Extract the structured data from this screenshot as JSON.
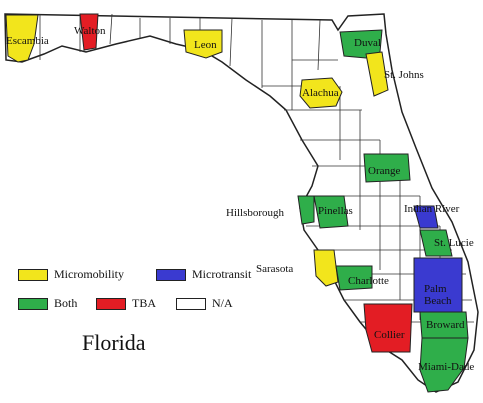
{
  "state_title": "Florida",
  "colors": {
    "micromobility": "#f2e51c",
    "microtransit": "#3a3ad0",
    "both": "#2fae4a",
    "tba": "#e31d24",
    "na": "#ffffff"
  },
  "legend": [
    {
      "key": "micromobility",
      "label": "Micromobility"
    },
    {
      "key": "microtransit",
      "label": "Microtransit"
    },
    {
      "key": "both",
      "label": "Both"
    },
    {
      "key": "tba",
      "label": "TBA"
    },
    {
      "key": "na",
      "label": "N/A"
    }
  ],
  "counties": [
    {
      "id": "escambia",
      "label": "Escambia",
      "category": "micromobility"
    },
    {
      "id": "walton",
      "label": "Walton",
      "category": "tba"
    },
    {
      "id": "leon",
      "label": "Leon",
      "category": "micromobility"
    },
    {
      "id": "duval",
      "label": "Duval",
      "category": "both"
    },
    {
      "id": "st-johns",
      "label": "St. Johns",
      "category": "micromobility"
    },
    {
      "id": "alachua",
      "label": "Alachua",
      "category": "micromobility"
    },
    {
      "id": "orange",
      "label": "Orange",
      "category": "both"
    },
    {
      "id": "hillsborough",
      "label": "Hillsborough",
      "category": "both"
    },
    {
      "id": "pinellas",
      "label": "Pinellas",
      "category": "both"
    },
    {
      "id": "indian-river",
      "label": "Indian River",
      "category": "microtransit"
    },
    {
      "id": "st-lucie",
      "label": "St. Lucie",
      "category": "both"
    },
    {
      "id": "sarasota",
      "label": "Sarasota",
      "category": "micromobility"
    },
    {
      "id": "charlotte",
      "label": "Charlotte",
      "category": "both"
    },
    {
      "id": "palm-beach",
      "label": "Palm Beach",
      "category": "microtransit"
    },
    {
      "id": "broward",
      "label": "Broward",
      "category": "both"
    },
    {
      "id": "collier",
      "label": "Collier",
      "category": "tba"
    },
    {
      "id": "miami-dade",
      "label": "Miami-Dade",
      "category": "both"
    }
  ]
}
